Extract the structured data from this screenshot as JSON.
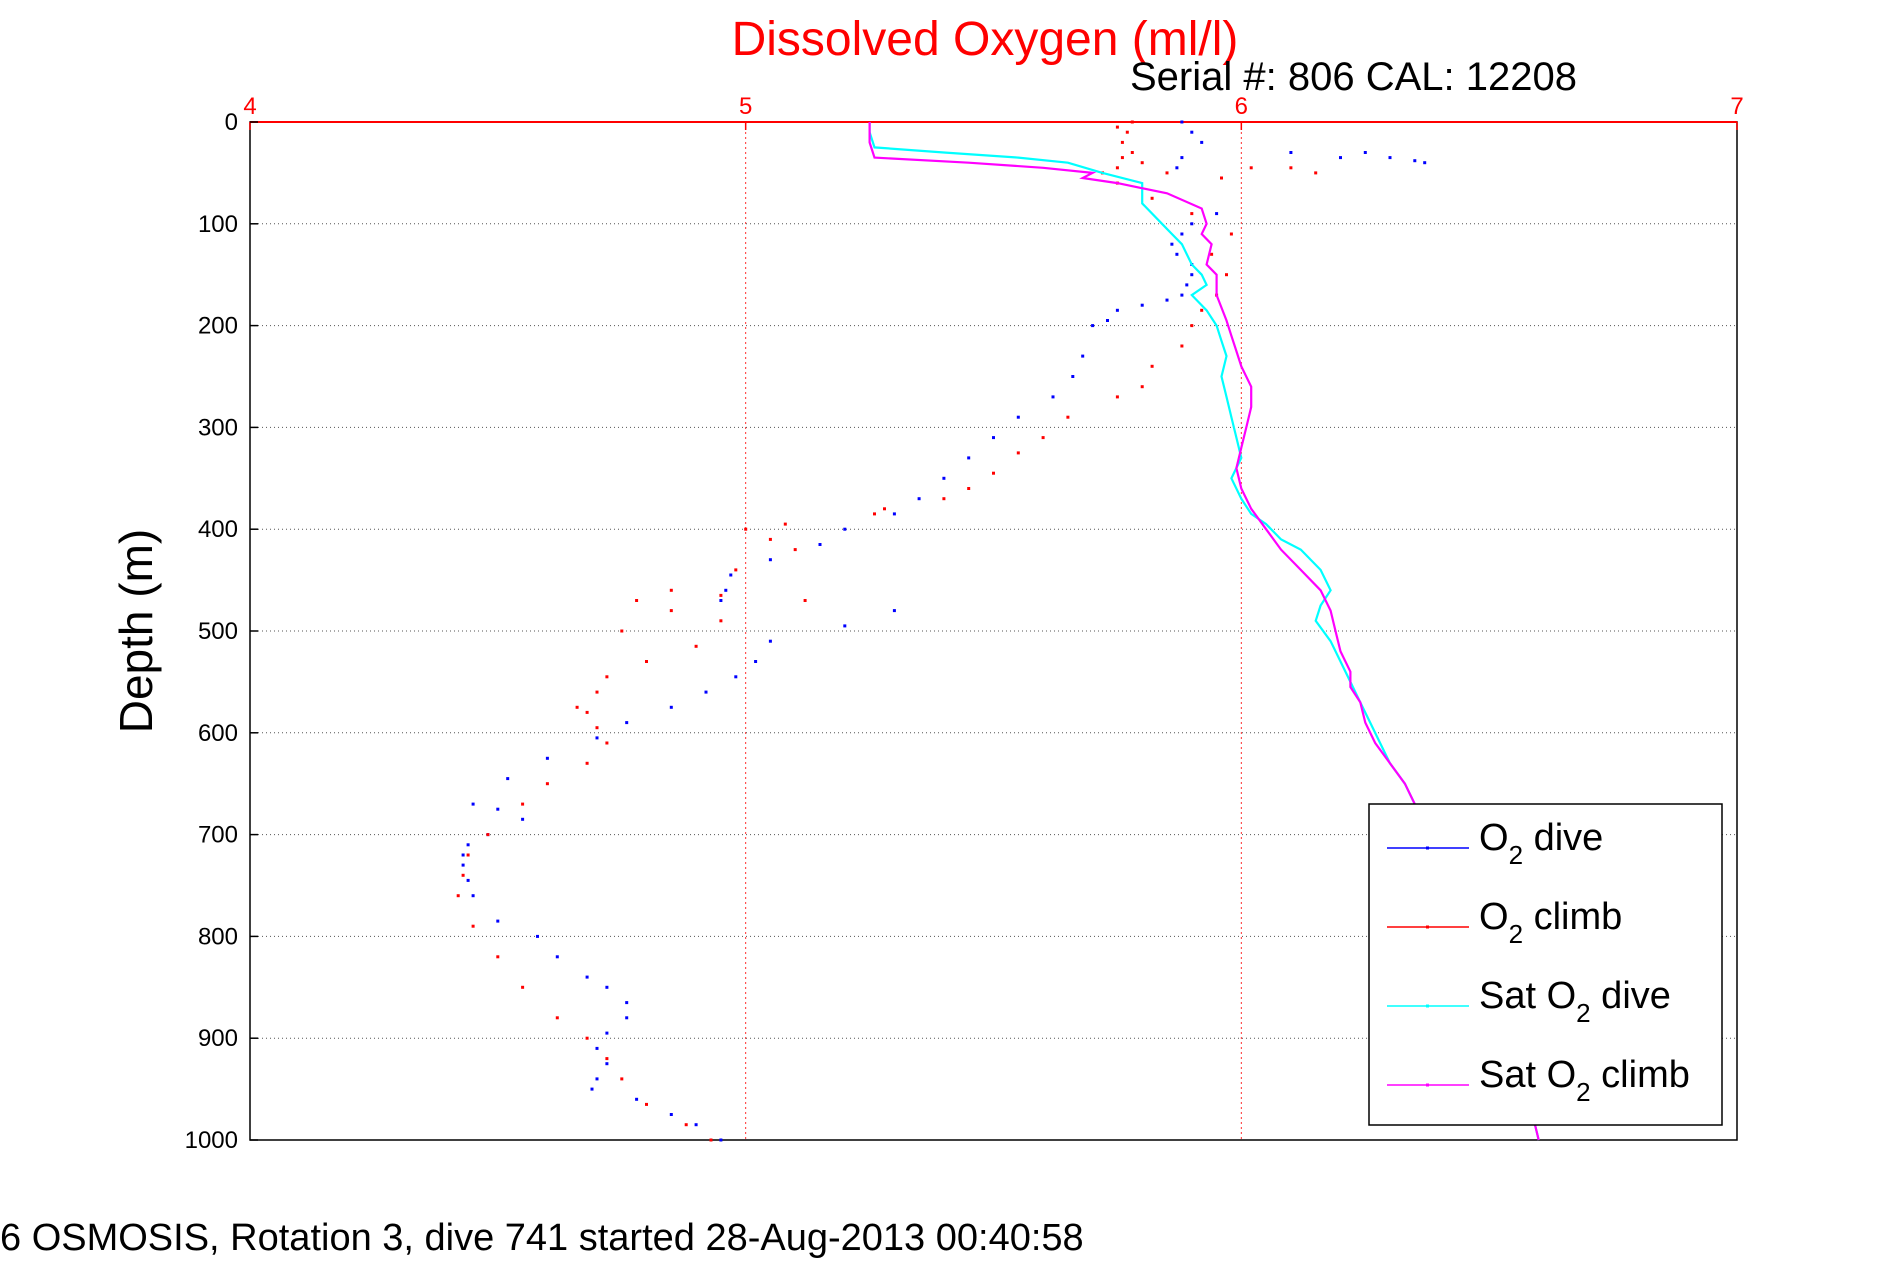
{
  "chart_data": {
    "type": "scatter",
    "title": "Dissolved Oxygen (ml/l)",
    "subtitle": "Serial #: 806  CAL: 12208",
    "ylabel": "Depth (m)",
    "footer": "6 OSMOSIS, Rotation 3, dive 741 started 28-Aug-2013 00:40:58",
    "xlim": [
      4,
      7
    ],
    "ylim": [
      0,
      1000
    ],
    "y_reversed": true,
    "x_axis_position": "top",
    "x_ticks": [
      "4",
      "5",
      "6",
      "7"
    ],
    "y_ticks": [
      "0",
      "100",
      "200",
      "300",
      "400",
      "500",
      "600",
      "700",
      "800",
      "900",
      "1000"
    ],
    "grid": true,
    "legend_placement": "bottom-right",
    "series": [
      {
        "name": "O2 dive",
        "legend_main": "O",
        "legend_sub": "2",
        "legend_rest": " dive",
        "color": "#0000ff",
        "style": "points",
        "x": [
          5.88,
          5.9,
          5.92,
          5.88,
          5.87,
          6.1,
          6.2,
          6.25,
          6.3,
          6.35,
          6.37,
          5.95,
          5.9,
          5.88,
          5.86,
          5.87,
          5.9,
          5.9,
          5.89,
          5.88,
          5.85,
          5.8,
          5.75,
          5.73,
          5.7,
          5.68,
          5.66,
          5.62,
          5.55,
          5.5,
          5.45,
          5.4,
          5.35,
          5.3,
          5.2,
          5.15,
          5.05,
          4.97,
          4.96,
          4.95,
          5.3,
          5.2,
          5.05,
          5.02,
          4.98,
          4.92,
          4.85,
          4.76,
          4.7,
          4.6,
          4.52,
          4.45,
          4.5,
          4.55,
          4.48,
          4.44,
          4.43,
          4.43,
          4.44,
          4.45,
          4.5,
          4.58,
          4.62,
          4.68,
          4.72,
          4.76,
          4.76,
          4.72,
          4.7,
          4.72,
          4.7,
          4.69,
          4.78,
          4.85,
          4.9,
          4.95
        ],
        "y": [
          0,
          10,
          20,
          35,
          45,
          30,
          35,
          30,
          35,
          38,
          40,
          90,
          100,
          110,
          120,
          130,
          140,
          150,
          160,
          170,
          175,
          180,
          185,
          195,
          200,
          230,
          250,
          270,
          290,
          310,
          330,
          350,
          370,
          385,
          400,
          415,
          430,
          445,
          460,
          470,
          480,
          495,
          510,
          530,
          545,
          560,
          575,
          590,
          605,
          625,
          645,
          670,
          675,
          685,
          700,
          710,
          720,
          730,
          745,
          760,
          785,
          800,
          820,
          840,
          850,
          865,
          880,
          895,
          910,
          925,
          940,
          950,
          960,
          975,
          985,
          1000
        ]
      },
      {
        "name": "O2 climb",
        "legend_main": "O",
        "legend_sub": "2",
        "legend_rest": " climb",
        "color": "#ff0000",
        "style": "points",
        "x": [
          4.93,
          4.88,
          4.8,
          4.75,
          4.72,
          4.68,
          4.62,
          4.55,
          4.5,
          4.45,
          4.42,
          4.43,
          4.44,
          4.48,
          4.55,
          4.6,
          4.68,
          4.72,
          4.7,
          4.68,
          4.66,
          4.7,
          4.72,
          4.8,
          4.9,
          4.95,
          5.12,
          4.95,
          4.85,
          4.75,
          4.78,
          4.85,
          4.98,
          5.1,
          5.05,
          5.0,
          5.08,
          5.26,
          5.28,
          5.4,
          5.45,
          5.5,
          5.55,
          5.6,
          5.65,
          5.75,
          5.8,
          5.82,
          5.88,
          5.9,
          5.92,
          5.95,
          5.97,
          5.94,
          5.98,
          5.9,
          5.82,
          5.75,
          5.72,
          5.75,
          5.76,
          5.8,
          5.85,
          5.96,
          6.02,
          6.1,
          6.15,
          5.78,
          5.76,
          5.77,
          5.75,
          5.78
        ],
        "y": [
          1000,
          985,
          965,
          940,
          920,
          900,
          880,
          850,
          820,
          790,
          760,
          740,
          720,
          700,
          670,
          650,
          630,
          610,
          595,
          580,
          575,
          560,
          545,
          530,
          515,
          490,
          470,
          465,
          480,
          500,
          470,
          460,
          440,
          420,
          410,
          400,
          395,
          385,
          380,
          370,
          360,
          345,
          325,
          310,
          290,
          270,
          260,
          240,
          220,
          200,
          185,
          170,
          150,
          130,
          110,
          90,
          75,
          60,
          50,
          45,
          35,
          40,
          50,
          55,
          45,
          45,
          50,
          30,
          20,
          10,
          5,
          0
        ]
      },
      {
        "name": "Sat O2 dive",
        "legend_main": "Sat O",
        "legend_sub": "2",
        "legend_rest": " dive",
        "color": "#00ffff",
        "style": "line",
        "x": [
          5.25,
          5.25,
          5.26,
          5.4,
          5.55,
          5.65,
          5.72,
          5.8,
          5.8,
          5.84,
          5.86,
          5.88,
          5.9,
          5.92,
          5.93,
          5.9,
          5.93,
          5.95,
          5.96,
          5.97,
          5.96,
          5.97,
          5.98,
          5.99,
          6.0,
          5.98,
          6.0,
          6.02,
          6.05,
          6.08,
          6.12,
          6.16,
          6.18,
          6.16,
          6.15,
          6.18,
          6.2,
          6.22,
          6.24,
          6.26,
          6.28,
          6.3,
          6.33,
          6.35,
          6.36,
          6.38,
          6.4,
          6.42,
          6.45,
          6.48,
          6.52,
          6.55,
          6.58,
          6.6
        ],
        "y": [
          0,
          10,
          25,
          30,
          35,
          40,
          50,
          60,
          80,
          100,
          110,
          120,
          140,
          150,
          160,
          170,
          185,
          200,
          215,
          230,
          250,
          270,
          290,
          310,
          330,
          350,
          370,
          385,
          395,
          410,
          420,
          440,
          460,
          475,
          490,
          510,
          530,
          550,
          570,
          590,
          610,
          630,
          650,
          670,
          690,
          720,
          750,
          780,
          810,
          840,
          880,
          920,
          960,
          1000
        ]
      },
      {
        "name": "Sat O2 climb",
        "legend_main": "Sat O",
        "legend_sub": "2",
        "legend_rest": " climb",
        "color": "#ff00ff",
        "style": "line",
        "x": [
          5.25,
          5.25,
          5.26,
          5.45,
          5.6,
          5.7,
          5.68,
          5.75,
          5.85,
          5.92,
          5.93,
          5.92,
          5.94,
          5.93,
          5.95,
          5.95,
          5.97,
          5.98,
          5.99,
          6.0,
          6.02,
          6.02,
          6.01,
          6.0,
          5.99,
          6.0,
          6.02,
          6.05,
          6.08,
          6.12,
          6.16,
          6.18,
          6.19,
          6.2,
          6.22,
          6.22,
          6.24,
          6.25,
          6.27,
          6.3,
          6.33,
          6.35,
          6.36,
          6.38,
          6.4,
          6.42,
          6.45,
          6.48,
          6.52,
          6.55,
          6.58,
          6.6
        ],
        "y": [
          0,
          20,
          35,
          40,
          45,
          50,
          55,
          60,
          70,
          85,
          100,
          110,
          120,
          140,
          150,
          170,
          195,
          210,
          225,
          240,
          260,
          280,
          300,
          320,
          340,
          360,
          380,
          400,
          420,
          440,
          460,
          480,
          500,
          520,
          540,
          555,
          570,
          590,
          610,
          630,
          650,
          670,
          690,
          720,
          750,
          780,
          810,
          840,
          880,
          920,
          960,
          1000
        ]
      }
    ]
  }
}
